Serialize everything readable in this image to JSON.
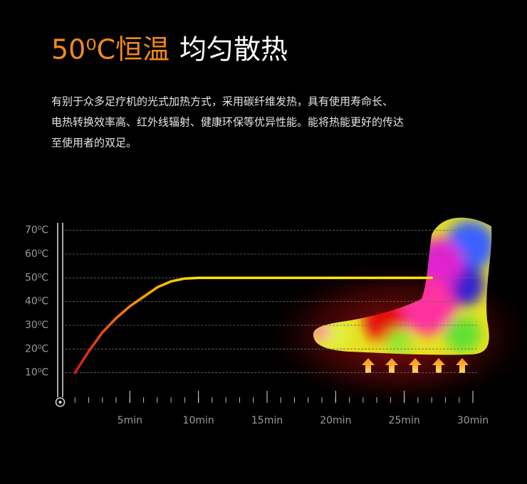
{
  "chart_data": {
    "type": "line",
    "title": [
      "50⁰C恒温",
      "均匀散热"
    ],
    "description": [
      "有别于众多足疗机的光式加热方式，采用碳纤维发热，具有使用寿命长、",
      "电热转换效率高、红外线辐射、健康环保等优异性能。能将热能更好的传达",
      "至使用者的双足。"
    ],
    "x": [
      1,
      2,
      3,
      4,
      5,
      6,
      7,
      8,
      9,
      10,
      27
    ],
    "values": [
      10,
      19,
      27,
      33,
      38,
      42,
      46,
      48.5,
      49.7,
      50,
      50
    ],
    "colors": [
      "#d21a1a",
      "#f06a10",
      "#ffb400",
      "#ffe600"
    ],
    "xlim": [
      0,
      30
    ],
    "ylim": [
      0,
      75
    ],
    "xticks": [
      {
        "value": 5,
        "label": "5min"
      },
      {
        "value": 10,
        "label": "10min"
      },
      {
        "value": 15,
        "label": "15min"
      },
      {
        "value": 20,
        "label": "20min"
      },
      {
        "value": 25,
        "label": "25min"
      },
      {
        "value": 30,
        "label": "30min"
      }
    ],
    "yticks": [
      {
        "value": 10,
        "label": "10⁰C"
      },
      {
        "value": 20,
        "label": "20⁰C"
      },
      {
        "value": 30,
        "label": "30⁰C"
      },
      {
        "value": 40,
        "label": "40⁰C"
      },
      {
        "value": 50,
        "label": "50⁰C"
      },
      {
        "value": 60,
        "label": "60⁰C"
      },
      {
        "value": 70,
        "label": "70⁰C"
      }
    ],
    "grid": true
  }
}
